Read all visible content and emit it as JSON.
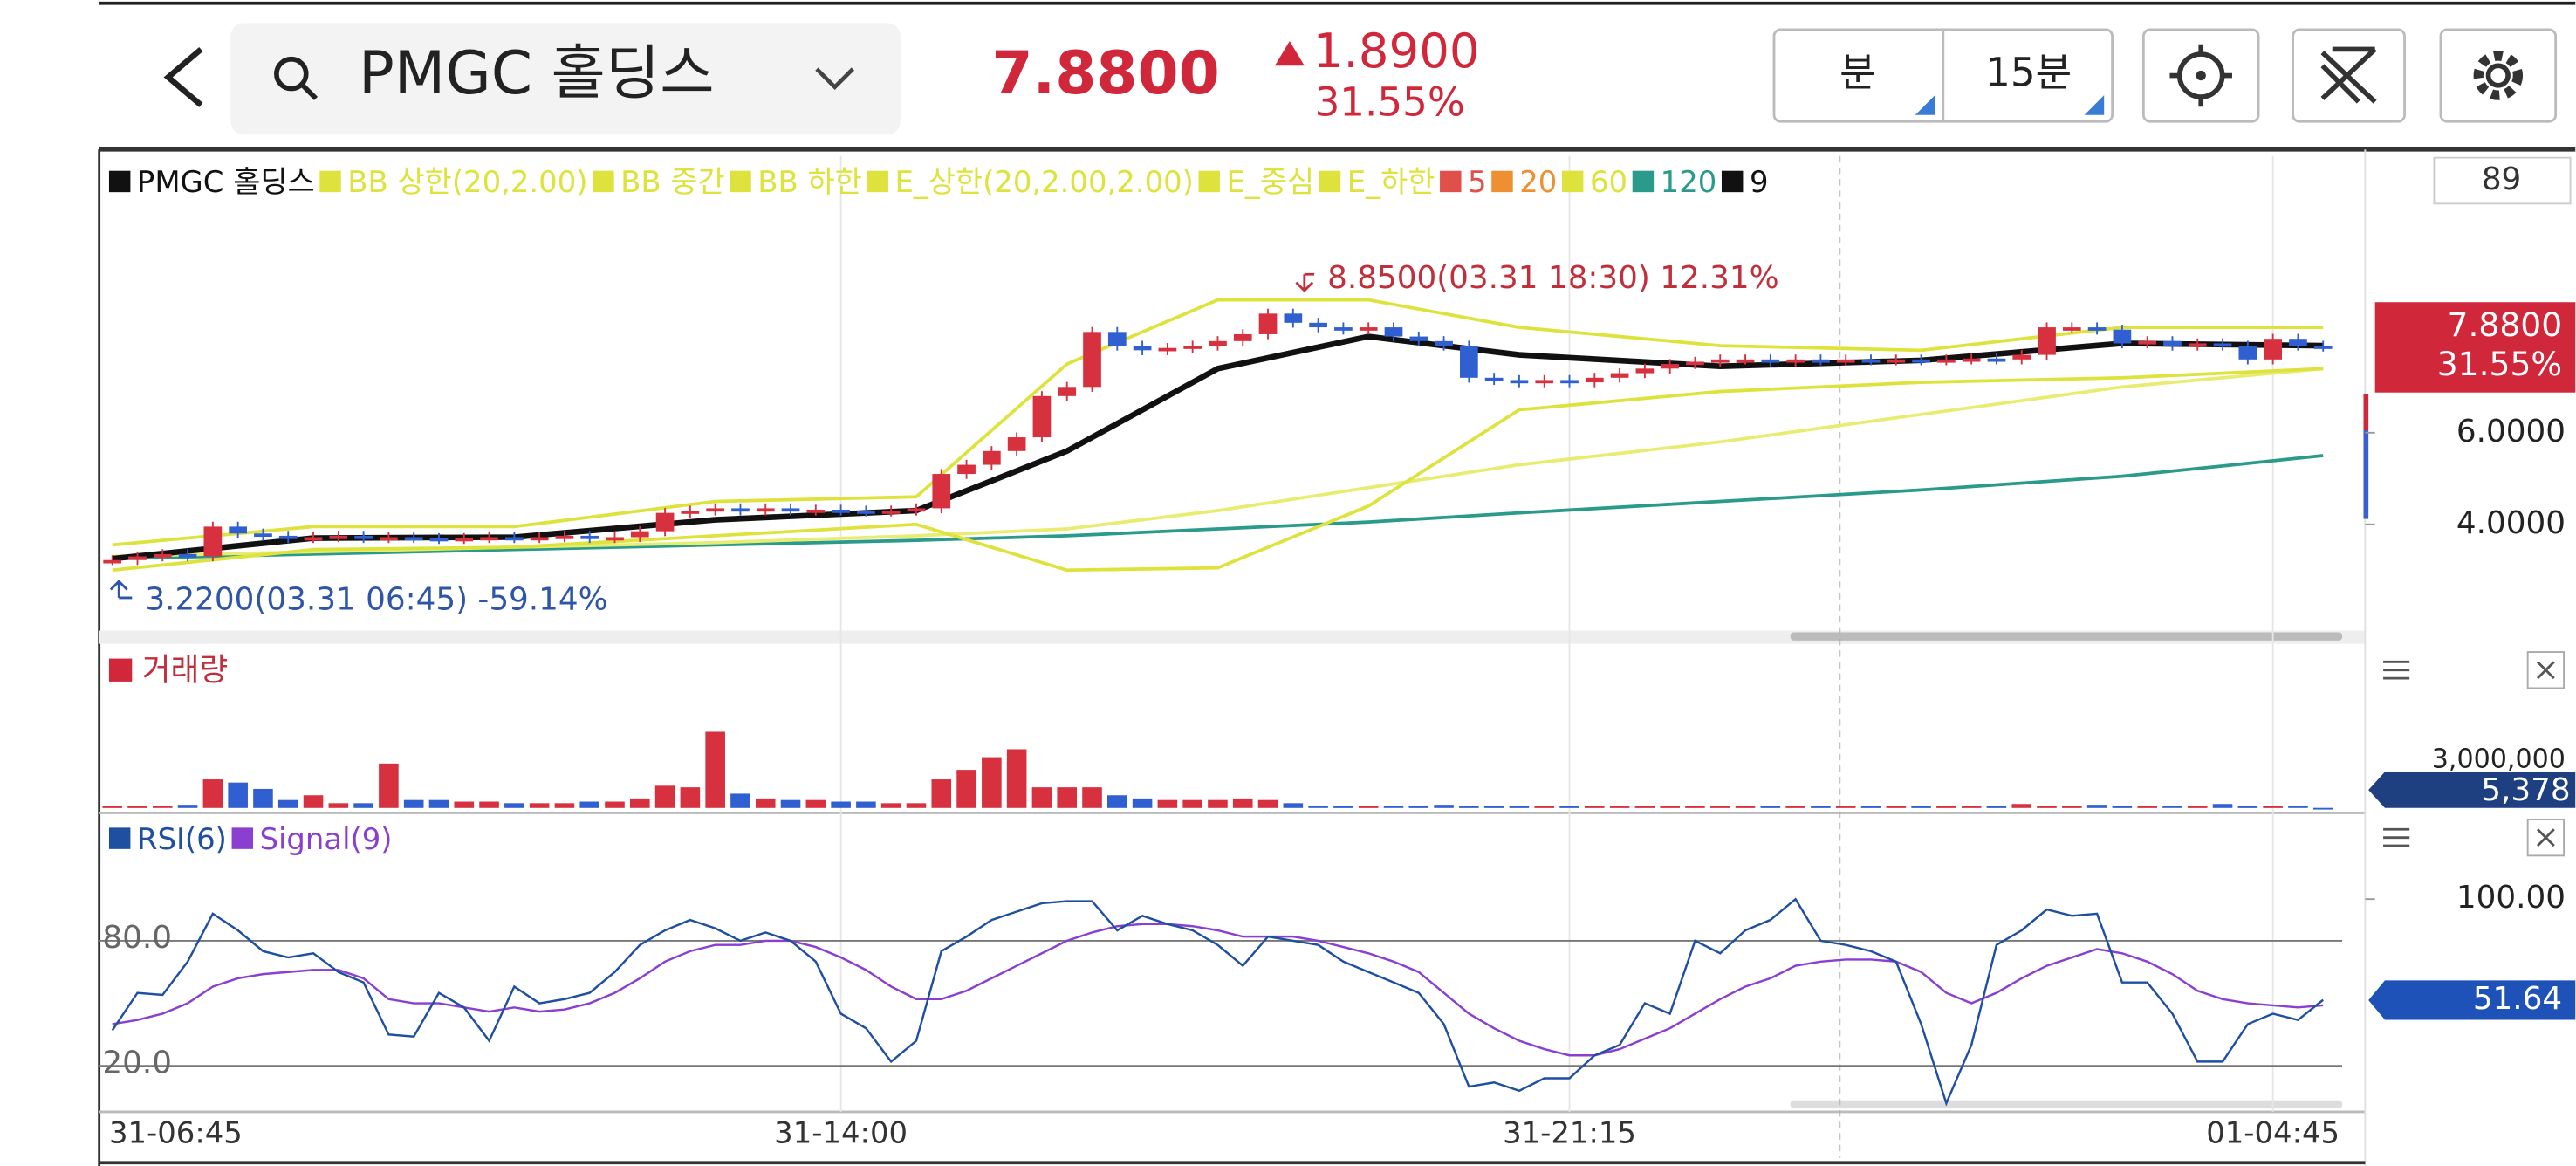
{
  "header": {
    "symbol": "PMGC 홀딩스",
    "price": "7.8800",
    "change": "1.8900",
    "change_rate": "31.55%",
    "unit_button": "분",
    "interval_button": "15분"
  },
  "price_panel": {
    "legend": [
      {
        "label": "PMGC 홀딩스",
        "color": "#111111"
      },
      {
        "label": "BB 상한(20,2.00)",
        "color": "#dde33c"
      },
      {
        "label": "BB 중간",
        "color": "#dde33c"
      },
      {
        "label": "BB 하한",
        "color": "#dde33c"
      },
      {
        "label": "E_상한(20,2.00,2.00)",
        "color": "#dde33c"
      },
      {
        "label": "E_중심",
        "color": "#dde33c"
      },
      {
        "label": "E_하한",
        "color": "#dde33c"
      },
      {
        "label": "5",
        "color": "#e0504a"
      },
      {
        "label": "20",
        "color": "#ee9032"
      },
      {
        "label": "60",
        "color": "#dde33c"
      },
      {
        "label": "120",
        "color": "#2a9a8a"
      },
      {
        "label": "9",
        "color": "#111111"
      }
    ],
    "bar_count": "89",
    "high_note": "8.8500(03.31 18:30) 12.31%",
    "low_note": "3.2200(03.31 06:45) -59.14%",
    "badge_price": "7.8800",
    "badge_rate": "31.55%",
    "ylim": [
      1.68,
      12.04
    ],
    "yticks": [
      {
        "value": 6,
        "label": "6.0000"
      },
      {
        "value": 4,
        "label": "4.0000"
      }
    ],
    "up_color": "#d7303f",
    "down_color": "#2f5fd0",
    "closes": [
      3.22,
      3.3,
      3.35,
      3.3,
      3.95,
      3.8,
      3.75,
      3.7,
      3.72,
      3.75,
      3.7,
      3.72,
      3.7,
      3.68,
      3.7,
      3.72,
      3.7,
      3.72,
      3.75,
      3.7,
      3.72,
      3.85,
      4.25,
      4.3,
      4.35,
      4.3,
      4.35,
      4.3,
      4.32,
      4.3,
      4.28,
      4.3,
      4.35,
      5.1,
      5.3,
      5.6,
      5.9,
      6.8,
      7.0,
      8.2,
      7.9,
      7.8,
      7.85,
      7.9,
      8.0,
      8.15,
      8.6,
      8.4,
      8.3,
      8.25,
      8.3,
      8.1,
      8.0,
      7.9,
      7.2,
      7.15,
      7.1,
      7.15,
      7.1,
      7.2,
      7.3,
      7.4,
      7.5,
      7.55,
      7.6,
      7.6,
      7.55,
      7.6,
      7.58,
      7.6,
      7.58,
      7.6,
      7.58,
      7.6,
      7.62,
      7.6,
      7.7,
      8.3,
      8.3,
      8.25,
      7.95,
      8.0,
      7.9,
      7.95,
      7.9,
      7.6,
      8.05,
      7.9,
      7.88
    ],
    "line_x": [
      0,
      8,
      16,
      24,
      32,
      38,
      44,
      50,
      56,
      64,
      72,
      80,
      88
    ],
    "lines": {
      "ma120": {
        "color": "#2a9a8a",
        "values": [
          3.25,
          3.35,
          3.45,
          3.55,
          3.65,
          3.75,
          3.9,
          4.05,
          4.25,
          4.5,
          4.75,
          5.05,
          5.5
        ]
      },
      "ma60": {
        "color": "#e8ec70",
        "values": [
          3.3,
          3.4,
          3.5,
          3.6,
          3.75,
          3.9,
          4.3,
          4.8,
          5.3,
          5.8,
          6.4,
          7.0,
          7.4
        ]
      },
      "bb_upper": {
        "color": "#dde33c",
        "values": [
          3.55,
          3.95,
          3.95,
          4.5,
          4.6,
          7.5,
          8.9,
          8.9,
          8.3,
          7.9,
          7.8,
          8.3,
          8.3
        ]
      },
      "bb_lower": {
        "color": "#dde33c",
        "values": [
          3.0,
          3.45,
          3.5,
          3.75,
          4.0,
          3.0,
          3.05,
          4.4,
          6.5,
          6.9,
          7.1,
          7.2,
          7.4
        ]
      },
      "ma9": {
        "color": "#111111",
        "values": [
          3.25,
          3.7,
          3.72,
          4.1,
          4.3,
          5.6,
          7.4,
          8.1,
          7.7,
          7.45,
          7.58,
          7.95,
          7.9
        ]
      }
    }
  },
  "volume_panel": {
    "legend": "거래량",
    "badge": "5,378",
    "ylim": [
      0,
      6930000
    ],
    "yticks": [
      {
        "value": 3000000,
        "label": "3,000,000"
      }
    ],
    "values": [
      100000,
      100000,
      150000,
      200000,
      1800000,
      1600000,
      1200000,
      500000,
      800000,
      300000,
      300000,
      2800000,
      500000,
      500000,
      400000,
      400000,
      300000,
      300000,
      300000,
      400000,
      400000,
      600000,
      1400000,
      1300000,
      4800000,
      900000,
      600000,
      500000,
      500000,
      400000,
      400000,
      300000,
      300000,
      1800000,
      2400000,
      3200000,
      3700000,
      1300000,
      1300000,
      1300000,
      800000,
      600000,
      500000,
      500000,
      500000,
      600000,
      500000,
      300000,
      150000,
      100000,
      100000,
      120000,
      100000,
      200000,
      100000,
      100000,
      100000,
      100000,
      100000,
      100000,
      100000,
      100000,
      100000,
      100000,
      100000,
      100000,
      100000,
      100000,
      100000,
      100000,
      100000,
      100000,
      100000,
      100000,
      100000,
      100000,
      250000,
      100000,
      100000,
      200000,
      100000,
      100000,
      150000,
      100000,
      250000,
      100000,
      100000,
      150000,
      5378
    ]
  },
  "rsi_panel": {
    "legend": [
      {
        "label": "RSI(6)",
        "color": "#1f4fa0"
      },
      {
        "label": "Signal(9)",
        "color": "#8a3fd0"
      }
    ],
    "ylim": [
      -1.3,
      139
    ],
    "yticks": [
      {
        "value": 80,
        "label": "80.0"
      },
      {
        "value": 20,
        "label": "20.0"
      }
    ],
    "right_ticks": [
      {
        "value": 100,
        "label": "100.00"
      }
    ],
    "rsi": [
      37,
      55,
      54,
      70,
      93,
      85,
      75,
      72,
      74,
      65,
      60,
      35,
      34,
      55,
      48,
      32,
      58,
      50,
      52,
      55,
      65,
      78,
      85,
      90,
      86,
      80,
      84,
      80,
      70,
      45,
      38,
      22,
      32,
      75,
      82,
      90,
      94,
      98,
      99,
      99,
      85,
      92,
      88,
      85,
      78,
      68,
      82,
      80,
      78,
      70,
      65,
      60,
      55,
      40,
      10,
      12,
      8,
      14,
      14,
      25,
      30,
      50,
      45,
      80,
      74,
      85,
      90,
      100,
      80,
      78,
      75,
      70,
      40,
      2,
      30,
      78,
      85,
      95,
      92,
      93,
      60,
      60,
      45,
      22,
      22,
      40,
      45,
      42,
      51.64
    ],
    "signal": [
      40,
      42,
      45,
      50,
      58,
      62,
      64,
      65,
      66,
      66,
      62,
      52,
      50,
      50,
      48,
      46,
      48,
      46,
      47,
      50,
      55,
      62,
      70,
      75,
      78,
      78,
      80,
      80,
      77,
      72,
      66,
      58,
      52,
      52,
      56,
      62,
      68,
      74,
      80,
      84,
      87,
      88,
      88,
      87,
      85,
      82,
      82,
      82,
      80,
      77,
      74,
      70,
      65,
      55,
      45,
      38,
      32,
      28,
      25,
      25,
      28,
      33,
      38,
      45,
      52,
      58,
      62,
      68,
      70,
      71,
      71,
      70,
      65,
      55,
      50,
      55,
      62,
      68,
      72,
      76,
      74,
      70,
      64,
      56,
      52,
      50,
      49,
      48,
      49
    ]
  },
  "time_axis": {
    "ticks": [
      {
        "value": 0,
        "label": "31-06:45"
      },
      {
        "value": 29,
        "label": "31-14:00"
      },
      {
        "value": 58,
        "label": "31-21:15"
      },
      {
        "value": 86,
        "label": "01-04:45"
      }
    ]
  }
}
